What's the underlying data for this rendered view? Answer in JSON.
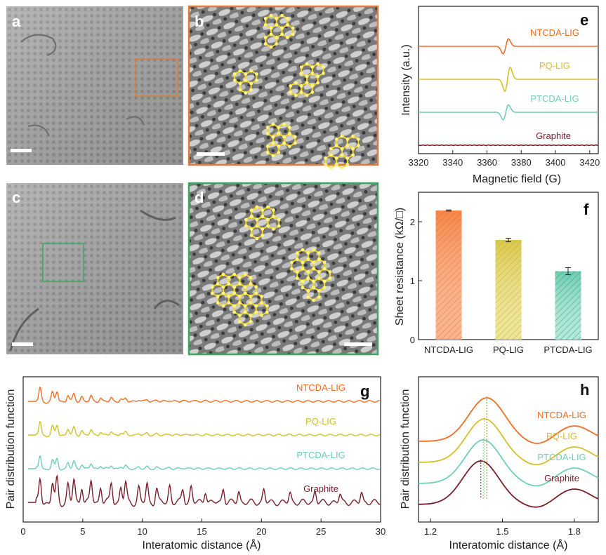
{
  "panels": {
    "a": {
      "letter": "a"
    },
    "b": {
      "letter": "b"
    },
    "c": {
      "letter": "c"
    },
    "d": {
      "letter": "d"
    }
  },
  "colors": {
    "NTCDA-LIG": "#f26d24",
    "PQ-LIG": "#d4c12a",
    "PTCDA-LIG": "#6fcfb5",
    "Graphite": "#7a1f2b",
    "box_b": "#e07b39",
    "box_d": "#3aa860",
    "hexagon": "#f2d21a"
  },
  "chart_data": [
    {
      "panel": "e",
      "type": "line",
      "xlabel": "Magnetic field (G)",
      "ylabel": "Intensity (a.u.)",
      "xlim": [
        3320,
        3425
      ],
      "xticks": [
        3320,
        3340,
        3360,
        3380,
        3400,
        3420
      ],
      "series": [
        {
          "name": "NTCDA-LIG",
          "offset": 3,
          "center": 3371,
          "amplitude": 0.35
        },
        {
          "name": "PQ-LIG",
          "offset": 2,
          "center": 3372,
          "amplitude": 0.55
        },
        {
          "name": "PTCDA-LIG",
          "offset": 1,
          "center": 3371,
          "amplitude": 0.35
        },
        {
          "name": "Graphite",
          "offset": 0,
          "center": 3371,
          "amplitude": 0
        }
      ]
    },
    {
      "panel": "f",
      "type": "bar",
      "ylabel": "Sheet resistance (kΩ/□)",
      "ylim": [
        0,
        2.5
      ],
      "yticks": [
        0,
        1,
        2
      ],
      "categories": [
        "NTCDA-LIG",
        "PQ-LIG",
        "PTCDA-LIG"
      ],
      "values": [
        2.19,
        1.69,
        1.16
      ],
      "errors": [
        0.01,
        0.03,
        0.06
      ]
    },
    {
      "panel": "g",
      "type": "line",
      "xlabel": "Interatomic distance (Å)",
      "ylabel": "Pair distribution function",
      "xlim": [
        0,
        30
      ],
      "xticks": [
        0,
        5,
        10,
        15,
        20,
        25,
        30
      ],
      "series": [
        {
          "name": "NTCDA-LIG",
          "offset": 3
        },
        {
          "name": "PQ-LIG",
          "offset": 2
        },
        {
          "name": "PTCDA-LIG",
          "offset": 1
        },
        {
          "name": "Graphite",
          "offset": 0
        }
      ]
    },
    {
      "panel": "h",
      "type": "line",
      "xlabel": "Interatomic distance (Å)",
      "ylabel": "Pair distribution function",
      "xlim": [
        1.15,
        1.9
      ],
      "xticks": [
        1.2,
        1.5,
        1.8
      ],
      "series": [
        {
          "name": "NTCDA-LIG",
          "offset": 3,
          "peak": 1.435
        },
        {
          "name": "PQ-LIG",
          "offset": 2,
          "peak": 1.425
        },
        {
          "name": "PTCDA-LIG",
          "offset": 1,
          "peak": 1.42
        },
        {
          "name": "Graphite",
          "offset": 0,
          "peak": 1.41
        }
      ]
    }
  ]
}
